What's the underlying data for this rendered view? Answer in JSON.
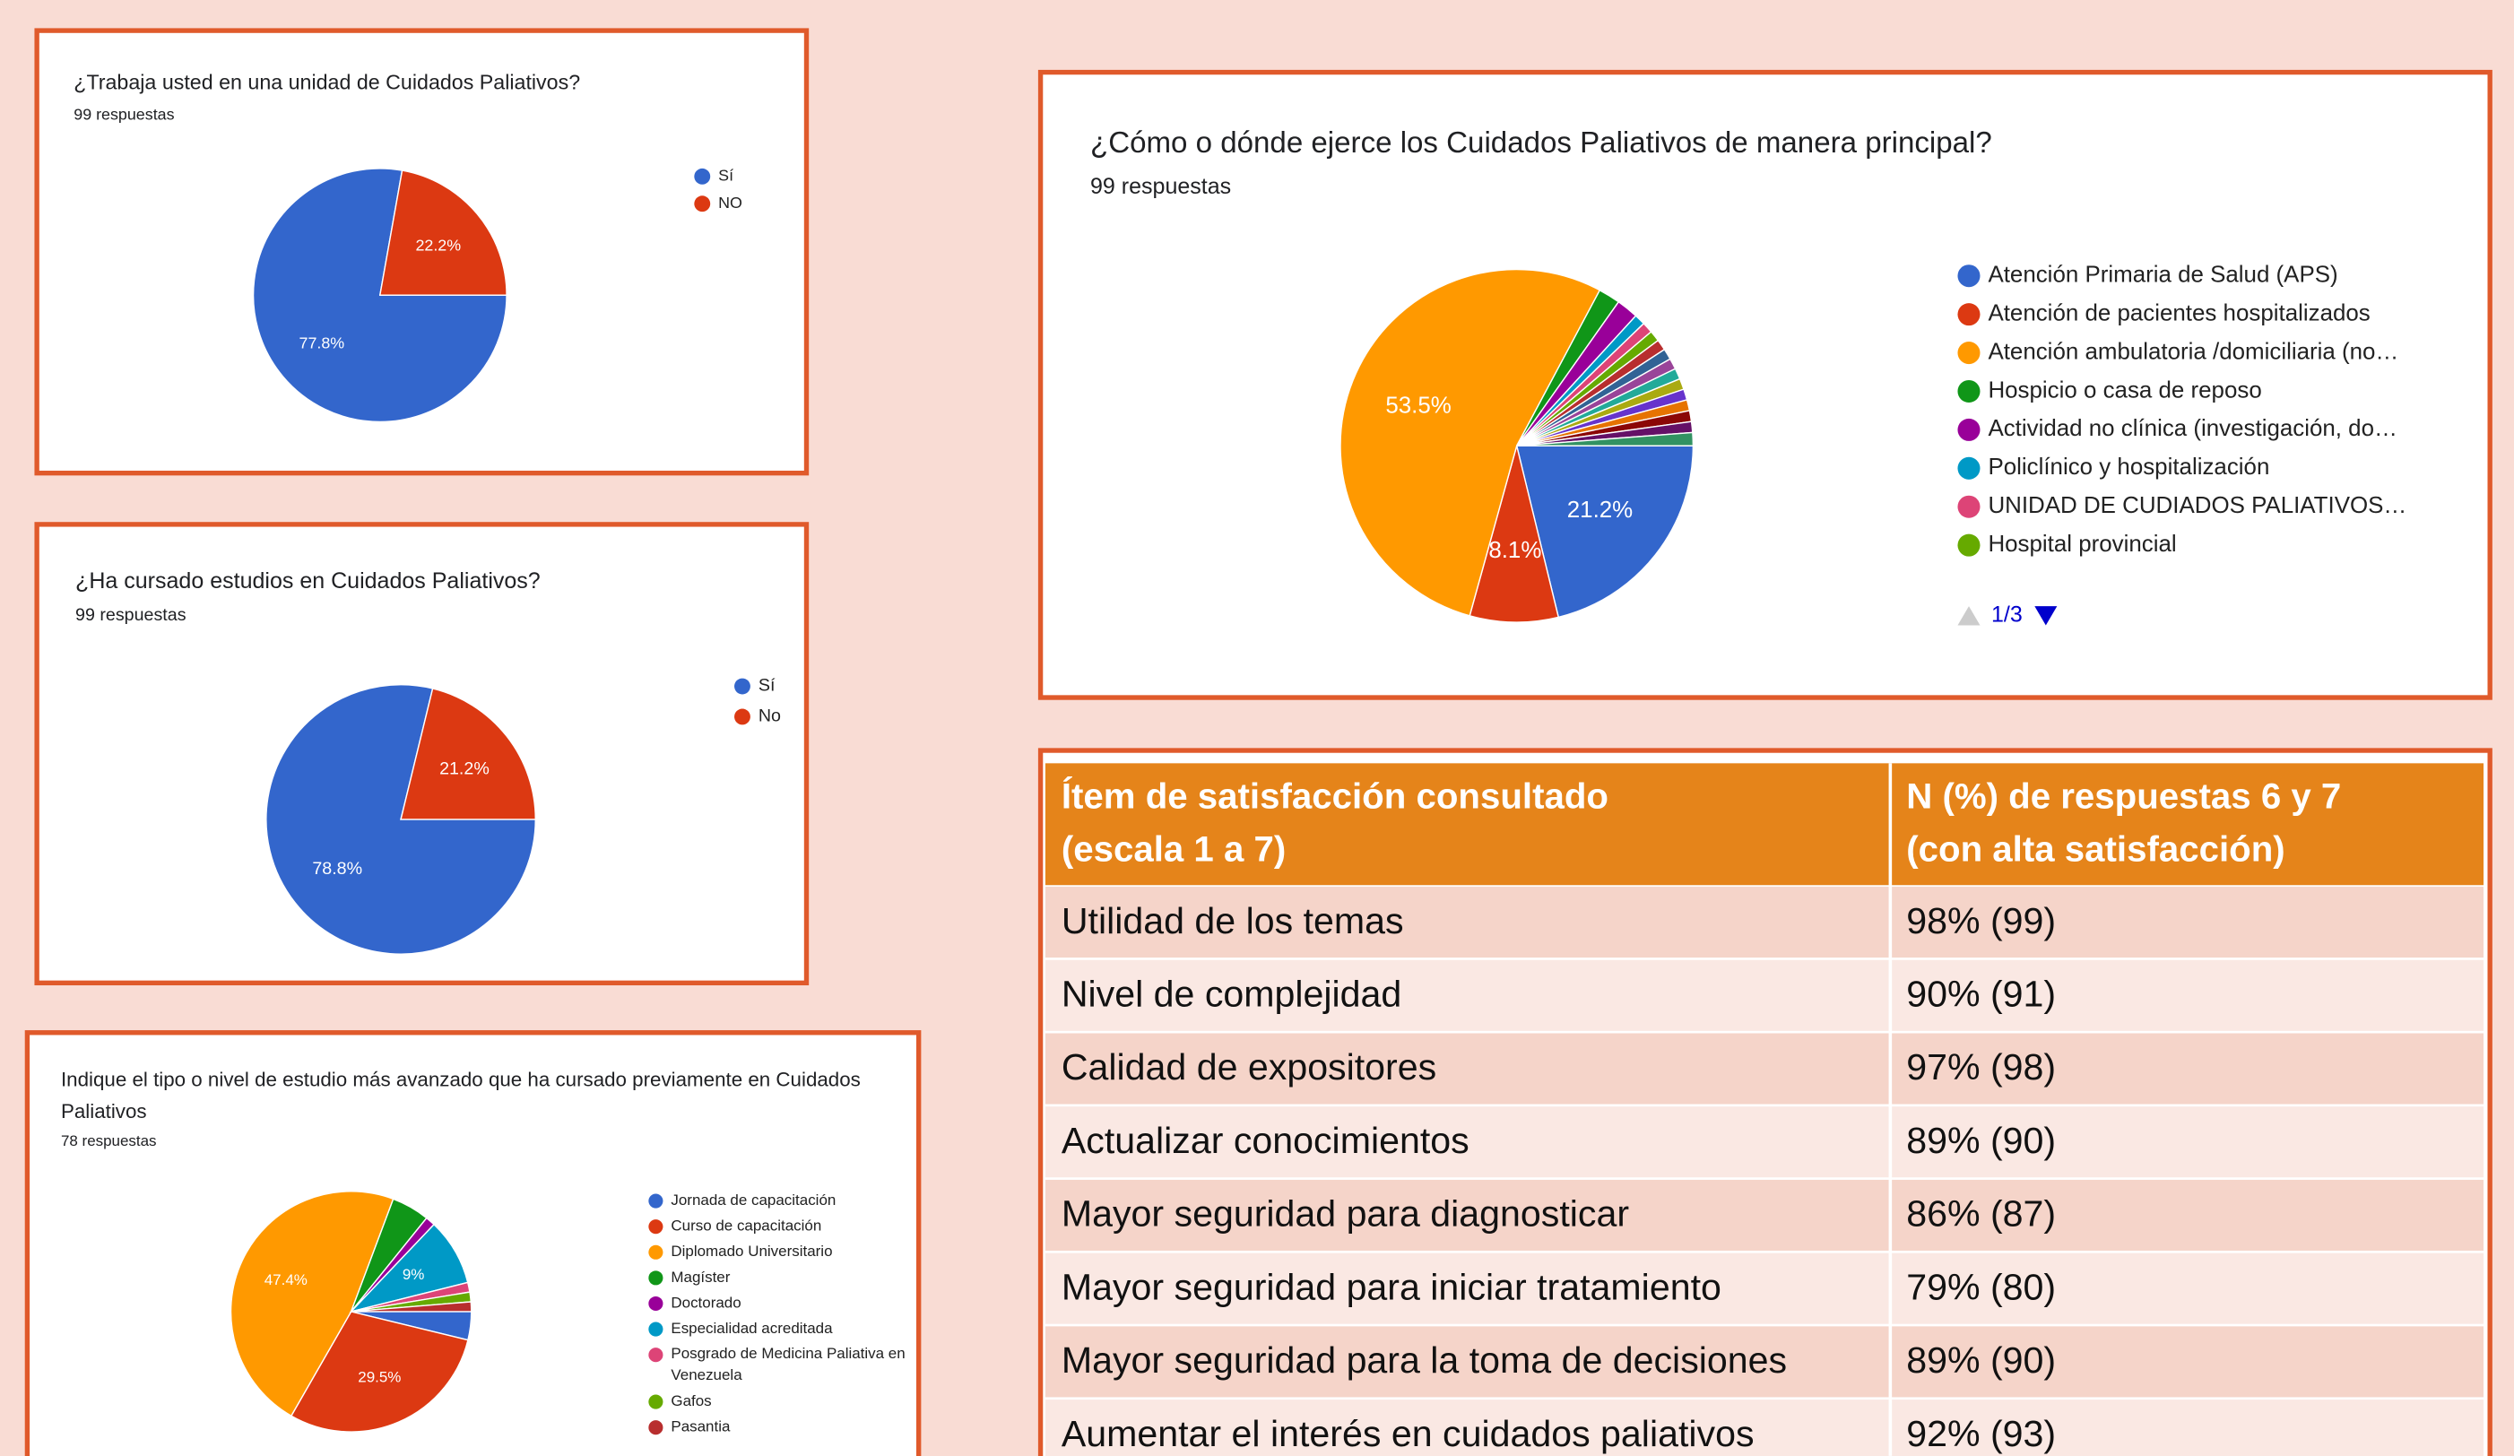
{
  "chart_data": [
    {
      "type": "pie",
      "title": "¿Trabaja usted en una unidad de Cuidados Paliativos?",
      "subtitle": "99 respuestas",
      "categories": [
        "Sí",
        "NO"
      ],
      "values": [
        77.8,
        22.2
      ],
      "value_labels": [
        "77.8%",
        "22.2%"
      ],
      "colors": [
        "#3366cc",
        "#dc3912"
      ],
      "legend": "right"
    },
    {
      "type": "pie",
      "title": "¿Ha cursado estudios en Cuidados Paliativos?",
      "subtitle": "99 respuestas",
      "categories": [
        "Sí",
        "No"
      ],
      "values": [
        78.8,
        21.2
      ],
      "value_labels": [
        "78.8%",
        "21.2%"
      ],
      "colors": [
        "#3366cc",
        "#dc3912"
      ],
      "legend": "right"
    },
    {
      "type": "pie",
      "title": "Indique el tipo o nivel de estudio más avanzado que ha cursado previamente en Cuidados Paliativos",
      "subtitle": "78 respuestas",
      "categories": [
        "Jornada de capacitación",
        "Curso de capacitación",
        "Diplomado Universitario",
        "Magíster",
        "Doctorado",
        "Especialidad acreditada",
        "Posgrado de Medicina Paliativa en Venezuela",
        "Gafos",
        "Pasantia"
      ],
      "values": [
        3.8,
        29.5,
        47.4,
        5.1,
        1.3,
        9,
        1.3,
        1.3,
        1.3
      ],
      "value_labels": [
        null,
        "29.5%",
        "47.4%",
        null,
        null,
        "9%",
        null,
        null,
        null
      ],
      "colors": [
        "#3366cc",
        "#dc3912",
        "#ff9900",
        "#109618",
        "#990099",
        "#0099c6",
        "#dd4477",
        "#66aa00",
        "#b82e2e"
      ],
      "legend": "right"
    },
    {
      "type": "pie",
      "title": "¿Cómo o dónde ejerce los Cuidados Paliativos de manera principal?",
      "subtitle": "99 respuestas",
      "categories": [
        "Atención Primaria de Salud (APS)",
        "Atención de pacientes hospitalizados",
        "Atención ambulatoria /domiciliaria (no…",
        "Hospicio o casa de reposo",
        "Actividad no clínica (investigación, do…",
        "Policlínico y hospitalización",
        "UNIDAD DE CUDIADOS PALIATIVOS…",
        "Hospital provincial",
        null,
        null,
        null,
        null,
        null,
        null,
        null,
        null,
        null,
        null
      ],
      "values": [
        21.2,
        8.1,
        53.5,
        2,
        2,
        1,
        1,
        1,
        1,
        1,
        1,
        1,
        1,
        1,
        1,
        1,
        1,
        1.2
      ],
      "value_labels": [
        "21.2%",
        "8.1%",
        "53.5%",
        null,
        null,
        null,
        null,
        null,
        null,
        null,
        null,
        null,
        null,
        null,
        null,
        null,
        null,
        null
      ],
      "colors": [
        "#3366cc",
        "#dc3912",
        "#ff9900",
        "#109618",
        "#990099",
        "#0099c6",
        "#dd4477",
        "#66aa00",
        "#b82e2e",
        "#316395",
        "#994499",
        "#22aa99",
        "#aaaa11",
        "#6633cc",
        "#e67300",
        "#8b0707",
        "#651067",
        "#329262"
      ],
      "legend": "right",
      "legend_page": "1/3"
    }
  ],
  "table": {
    "header": [
      [
        "Ítem de satisfacción consultado",
        "(escala 1 a 7)"
      ],
      [
        "N (%) de respuestas 6 y 7",
        "(con alta satisfacción)"
      ]
    ],
    "rows": [
      [
        "Utilidad de los temas",
        "98% (99)"
      ],
      [
        "Nivel de complejidad",
        "90% (91)"
      ],
      [
        "Calidad de expositores",
        "97% (98)"
      ],
      [
        "Actualizar conocimientos",
        "89% (90)"
      ],
      [
        "Mayor seguridad para diagnosticar",
        "86% (87)"
      ],
      [
        "Mayor seguridad para iniciar tratamiento",
        "79% (80)"
      ],
      [
        "Mayor seguridad para la toma de decisiones",
        "89% (90)"
      ],
      [
        "Aumentar el interés en cuidados paliativos",
        "92% (93)"
      ]
    ]
  }
}
